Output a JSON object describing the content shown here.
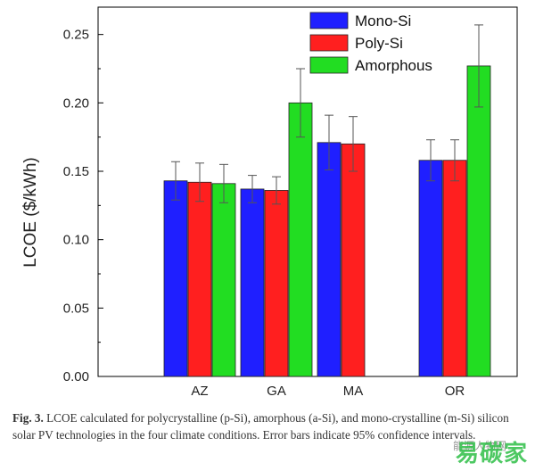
{
  "chart_data": {
    "type": "bar",
    "title": "",
    "xlabel": "",
    "ylabel": "LCOE ($/kWh)",
    "categories": [
      "AZ",
      "GA",
      "MA",
      "OR"
    ],
    "ylim": [
      0,
      0.27
    ],
    "yticks": [
      "0.00",
      "0.05",
      "0.10",
      "0.15",
      "0.20",
      "0.25"
    ],
    "legend_position": "top-right",
    "error_bars": true,
    "series": [
      {
        "name": "Mono-Si",
        "color": "#1f1fff",
        "values": [
          0.143,
          0.137,
          0.171,
          0.158
        ],
        "error": [
          0.014,
          0.01,
          0.02,
          0.015
        ]
      },
      {
        "name": "Poly-Si",
        "color": "#ff1f1f",
        "values": [
          0.142,
          0.136,
          0.17,
          0.158
        ],
        "error": [
          0.014,
          0.01,
          0.02,
          0.015
        ]
      },
      {
        "name": "Amorphous",
        "color": "#22dd22",
        "values": [
          0.141,
          0.2,
          null,
          0.227
        ],
        "error": [
          0.014,
          0.025,
          null,
          0.03
        ]
      }
    ]
  },
  "caption": {
    "label": "Fig. 3.",
    "text": "LCOE calculated for polycrystalline (p-Si), amorphous (a-Si), and mono-crystalline (m-Si) silicon solar PV technologies in the four climate conditions. Error bars indicate 95% confidence intervals."
  },
  "watermark": {
    "text": "易碳家",
    "sub": "能源人物网"
  }
}
